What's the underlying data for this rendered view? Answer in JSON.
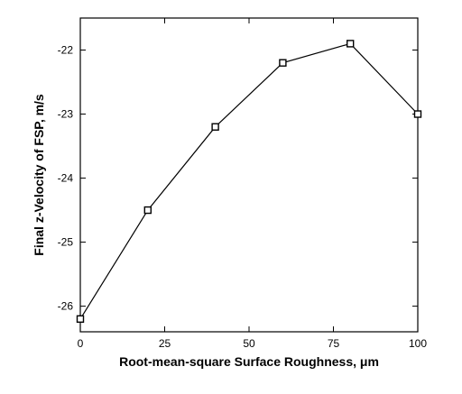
{
  "chart_data": {
    "type": "line",
    "title": "",
    "xlabel": "Root-mean-square Surface Roughness, μm",
    "ylabel": "Final z-Velocity of FSP, m/s",
    "xlim": [
      0,
      100
    ],
    "ylim": [
      -26.4,
      -21.5
    ],
    "xticks": [
      0,
      25,
      50,
      75,
      100
    ],
    "yticks": [
      -26,
      -25,
      -24,
      -23,
      -22
    ],
    "grid": false,
    "legend": "none",
    "marker": "open-square",
    "line_color": "#000000",
    "series": [
      {
        "x": [
          0,
          20,
          40,
          60,
          80,
          100
        ],
        "y": [
          -26.2,
          -24.5,
          -23.2,
          -22.2,
          -21.9,
          -23.0
        ]
      }
    ]
  }
}
